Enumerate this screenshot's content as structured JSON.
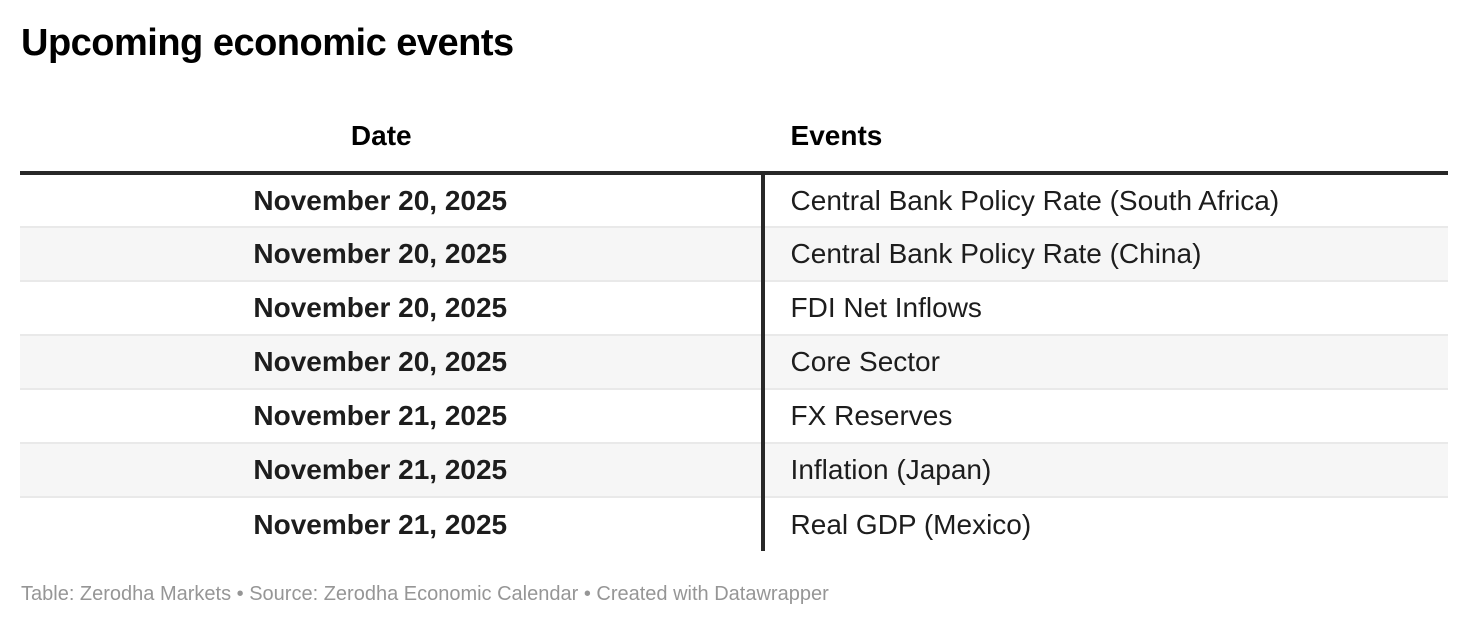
{
  "title": "Upcoming economic events",
  "table": {
    "columns": [
      {
        "label": "Date"
      },
      {
        "label": "Events"
      }
    ],
    "rows": [
      {
        "date": "November 20, 2025",
        "event": "Central Bank Policy Rate (South Africa)"
      },
      {
        "date": "November 20, 2025",
        "event": "Central Bank Policy Rate (China)"
      },
      {
        "date": "November 20, 2025",
        "event": "FDI Net Inflows"
      },
      {
        "date": "November 20, 2025",
        "event": "Core Sector"
      },
      {
        "date": "November 21, 2025",
        "event": "FX Reserves"
      },
      {
        "date": "November 21, 2025",
        "event": "Inflation (Japan)"
      },
      {
        "date": "November 21, 2025",
        "event": "Real GDP (Mexico)"
      }
    ]
  },
  "footer": {
    "attribution": "Table: Zerodha Markets • Source: Zerodha Economic Calendar • Created with Datawrapper"
  },
  "colors": {
    "header_rule": "#282828",
    "divider": "#282828",
    "row_stripe": "#f6f6f6",
    "row_border": "#e9e9e9",
    "title_text": "#000000",
    "cell_text": "#1d1d1d",
    "footer_text": "#969696",
    "page_bg": "#ffffff"
  },
  "chart_data": {
    "type": "table",
    "title": "Upcoming economic events",
    "columns": [
      "Date",
      "Events"
    ],
    "rows": [
      [
        "November 20, 2025",
        "Central Bank Policy Rate (South Africa)"
      ],
      [
        "November 20, 2025",
        "Central Bank Policy Rate (China)"
      ],
      [
        "November 20, 2025",
        "FDI Net Inflows"
      ],
      [
        "November 20, 2025",
        "Core Sector"
      ],
      [
        "November 21, 2025",
        "FX Reserves"
      ],
      [
        "November 21, 2025",
        "Inflation (Japan)"
      ],
      [
        "November 21, 2025",
        "Real GDP (Mexico)"
      ]
    ],
    "layout_hints": {
      "date_column_align": "center",
      "events_column_align": "left",
      "zebra_striping": true,
      "striped_row_indices": [
        1,
        3,
        5
      ]
    }
  }
}
